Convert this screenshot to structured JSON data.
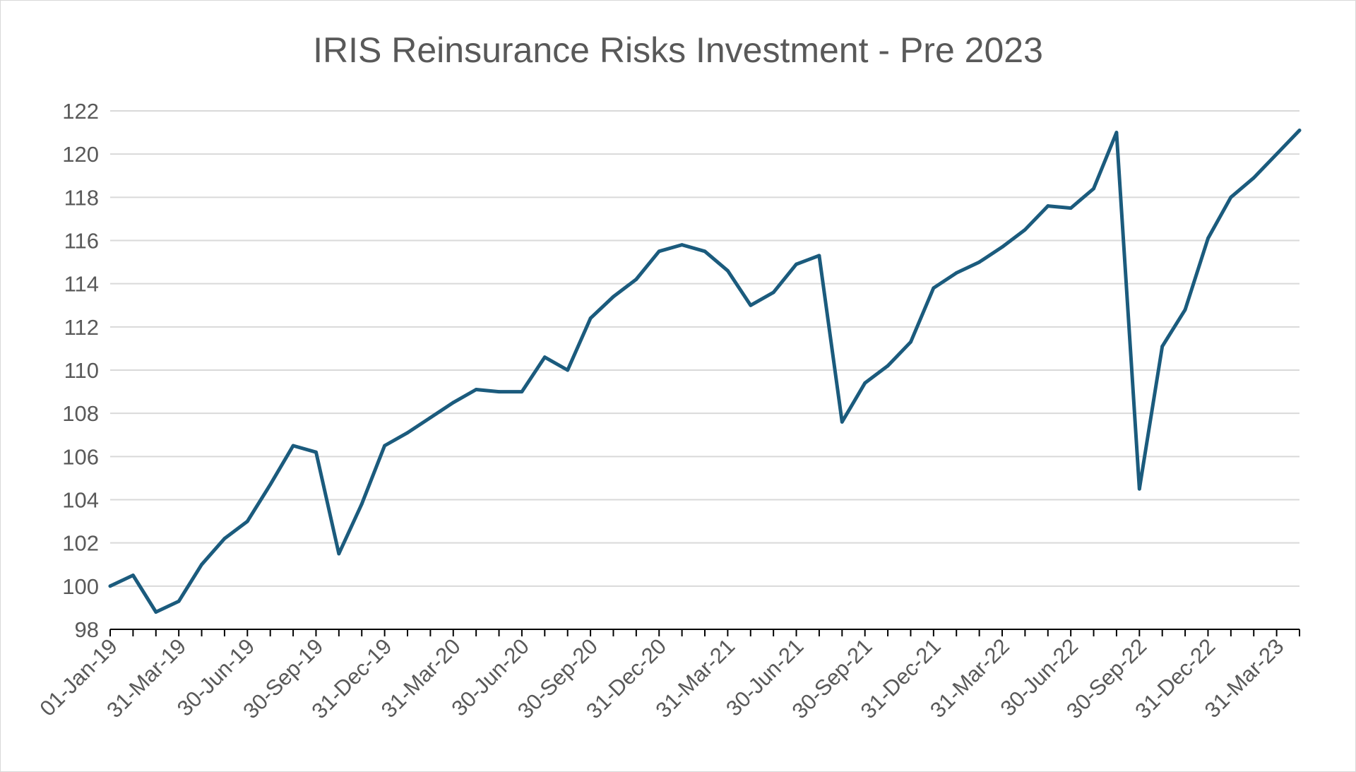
{
  "chart_data": {
    "type": "line",
    "title": "IRIS Reinsurance Risks Investment - Pre 2023",
    "xlabel": "",
    "ylabel": "",
    "ylim": [
      98,
      122
    ],
    "yticks": [
      "98",
      "100",
      "102",
      "104",
      "106",
      "108",
      "110",
      "112",
      "114",
      "116",
      "118",
      "120",
      "122"
    ],
    "xtick_labels": [
      "01-Jan-19",
      "31-Mar-19",
      "30-Jun-19",
      "30-Sep-19",
      "31-Dec-19",
      "31-Mar-20",
      "30-Jun-20",
      "30-Sep-20",
      "31-Dec-20",
      "31-Mar-21",
      "30-Jun-21",
      "30-Sep-21",
      "31-Dec-21",
      "31-Mar-22",
      "30-Jun-22",
      "30-Sep-22",
      "31-Dec-22",
      "31-Mar-23"
    ],
    "xtick_every": 3,
    "grid": true,
    "legend": "none",
    "series": [
      {
        "name": "IRIS Reinsurance Risks Investment",
        "color": "#1b5b7d",
        "values": [
          100.0,
          100.5,
          98.8,
          99.3,
          101.0,
          102.2,
          103.0,
          104.7,
          106.5,
          106.2,
          101.5,
          103.8,
          106.5,
          107.1,
          107.8,
          108.5,
          109.1,
          109.0,
          109.0,
          110.6,
          110.0,
          112.4,
          113.4,
          114.2,
          115.5,
          115.8,
          115.5,
          114.6,
          113.0,
          113.6,
          114.9,
          115.3,
          107.6,
          109.4,
          110.2,
          111.3,
          113.8,
          114.5,
          115.0,
          115.7,
          116.5,
          117.6,
          117.5,
          118.4,
          121.0,
          104.5,
          111.1,
          112.8,
          116.1,
          118.0,
          118.9,
          120.0,
          121.1
        ]
      }
    ]
  }
}
